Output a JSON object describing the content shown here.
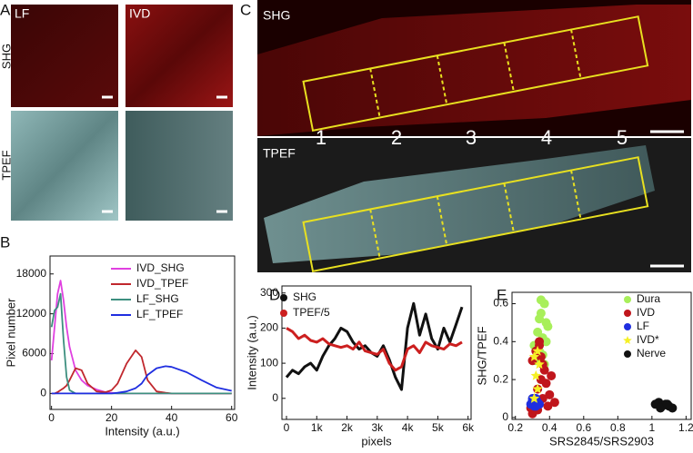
{
  "figure": {
    "panel_labels": [
      "A",
      "B",
      "C",
      "D",
      "E"
    ],
    "a_columns": [
      "LF",
      "IVD"
    ],
    "a_rows": [
      "SHG",
      "TPEF"
    ],
    "c_images": [
      "SHG",
      "TPEF"
    ],
    "c_regions": [
      "1",
      "2",
      "3",
      "4",
      "5"
    ]
  },
  "chart_data": [
    {
      "type": "line",
      "xlabel": "Intensity (a.u.)",
      "ylabel": "Pixel number",
      "legend": "upper right",
      "x": [
        0,
        1,
        2,
        3,
        4,
        5,
        6,
        8,
        10,
        12,
        15,
        18,
        20,
        22,
        25,
        28,
        30,
        32,
        35,
        38,
        40,
        45,
        50,
        55,
        60
      ],
      "series": [
        {
          "name": "IVD_SHG",
          "color": "#e040e0",
          "values": [
            5000,
            10000,
            15000,
            17000,
            14000,
            10000,
            7000,
            3500,
            2000,
            1200,
            600,
            200,
            100,
            0,
            0,
            0,
            0,
            0,
            0,
            0,
            0,
            0,
            0,
            0,
            0
          ]
        },
        {
          "name": "IVD_TPEF",
          "color": "#c0272d",
          "values": [
            0,
            0,
            200,
            500,
            800,
            1200,
            2000,
            3800,
            3500,
            1500,
            300,
            200,
            500,
            1500,
            4500,
            6500,
            5500,
            2000,
            300,
            100,
            0,
            0,
            0,
            0,
            0
          ]
        },
        {
          "name": "LF_SHG",
          "color": "#3d8f7f",
          "values": [
            10000,
            12500,
            13000,
            15000,
            8000,
            2500,
            500,
            0,
            0,
            0,
            0,
            0,
            0,
            0,
            0,
            0,
            0,
            0,
            0,
            0,
            0,
            0,
            0,
            0,
            0
          ]
        },
        {
          "name": "LF_TPEF",
          "color": "#1f2ee0",
          "values": [
            0,
            0,
            0,
            0,
            0,
            0,
            0,
            0,
            0,
            0,
            0,
            0,
            0,
            100,
            300,
            800,
            1500,
            2800,
            3800,
            4100,
            4000,
            3200,
            2000,
            900,
            400
          ]
        }
      ],
      "xlim": [
        -0.5,
        61
      ],
      "ylim": [
        -2400,
        20700
      ],
      "xticks": [
        0,
        20,
        40,
        60
      ],
      "yticks": [
        0,
        6000,
        12000,
        18000
      ]
    },
    {
      "type": "line",
      "xlabel": "pixels",
      "ylabel": "Intensity (a.u.)",
      "legend": "upper left",
      "x": [
        0,
        200,
        400,
        600,
        800,
        1000,
        1200,
        1400,
        1600,
        1800,
        2000,
        2200,
        2400,
        2600,
        2800,
        3000,
        3200,
        3400,
        3600,
        3800,
        4000,
        4200,
        4400,
        4600,
        4800,
        5000,
        5200,
        5400,
        5600,
        5800
      ],
      "series": [
        {
          "name": "SHG",
          "color": "#111111",
          "values": [
            60,
            80,
            70,
            90,
            100,
            80,
            120,
            150,
            170,
            200,
            190,
            160,
            140,
            150,
            130,
            120,
            150,
            110,
            60,
            25,
            200,
            270,
            180,
            240,
            170,
            140,
            200,
            160,
            210,
            260
          ]
        },
        {
          "name": "TPEF/5",
          "color": "#cc1f1f",
          "values": [
            200,
            190,
            170,
            180,
            165,
            160,
            170,
            155,
            150,
            145,
            150,
            140,
            160,
            135,
            130,
            125,
            140,
            100,
            80,
            90,
            140,
            150,
            130,
            160,
            150,
            145,
            140,
            155,
            150,
            160
          ]
        }
      ],
      "xlim": [
        -150,
        6100
      ],
      "ylim": [
        -60,
        320
      ],
      "xticks": [
        0,
        {
          "value": 1000,
          "label": "1k"
        },
        {
          "value": 2000,
          "label": "2k"
        },
        {
          "value": 3000,
          "label": "3k"
        },
        {
          "value": 4000,
          "label": "4k"
        },
        {
          "value": 5000,
          "label": "5k"
        },
        {
          "value": 6000,
          "label": "6k"
        }
      ],
      "yticks": [
        0,
        100,
        200,
        300
      ]
    },
    {
      "type": "scatter",
      "xlabel": "SRS2845/SRS2903",
      "ylabel": "SHG/TPEF",
      "legend": "upper right",
      "series": [
        {
          "name": "Dura",
          "color": "#a8ef5a",
          "marker": "dot",
          "x": [
            0.32,
            0.34,
            0.36,
            0.38,
            0.33,
            0.35,
            0.37,
            0.39,
            0.31,
            0.36,
            0.34,
            0.38,
            0.35,
            0.37
          ],
          "values": [
            0.3,
            0.35,
            0.42,
            0.5,
            0.45,
            0.55,
            0.6,
            0.48,
            0.38,
            0.33,
            0.52,
            0.4,
            0.62,
            0.28
          ]
        },
        {
          "name": "IVD",
          "color": "#c0161c",
          "marker": "dot",
          "x": [
            0.29,
            0.31,
            0.33,
            0.35,
            0.37,
            0.4,
            0.43,
            0.3,
            0.32,
            0.34,
            0.36,
            0.38,
            0.41,
            0.3,
            0.33,
            0.35,
            0.39,
            0.34,
            0.36
          ],
          "values": [
            0.05,
            0.1,
            0.15,
            0.2,
            0.25,
            0.12,
            0.08,
            0.3,
            0.35,
            0.38,
            0.28,
            0.18,
            0.22,
            0.02,
            0.04,
            0.32,
            0.06,
            0.4,
            0.1
          ]
        },
        {
          "name": "LF",
          "color": "#1f2ee0",
          "marker": "dot",
          "x": [
            0.29,
            0.3,
            0.31,
            0.32,
            0.33,
            0.34,
            0.3,
            0.32
          ],
          "values": [
            0.07,
            0.09,
            0.06,
            0.1,
            0.08,
            0.07,
            0.1,
            0.06
          ]
        },
        {
          "name": "IVD*",
          "color": "#f5f026",
          "marker": "star",
          "x": [
            0.31,
            0.33,
            0.32,
            0.34,
            0.31,
            0.33
          ],
          "values": [
            0.1,
            0.15,
            0.22,
            0.28,
            0.32,
            0.35
          ]
        },
        {
          "name": "Nerve",
          "color": "#111111",
          "marker": "dot",
          "x": [
            1.02,
            1.04,
            1.06,
            1.08,
            1.1,
            1.12,
            1.05,
            1.09
          ],
          "values": [
            0.07,
            0.08,
            0.06,
            0.07,
            0.06,
            0.05,
            0.05,
            0.07
          ]
        }
      ],
      "xlim": [
        0.18,
        1.23
      ],
      "ylim": [
        -0.01,
        0.66
      ],
      "xticks": [
        0.2,
        0.4,
        0.6,
        0.8,
        1,
        1.2
      ],
      "yticks": [
        0,
        0.2,
        0.4,
        0.6
      ]
    }
  ]
}
